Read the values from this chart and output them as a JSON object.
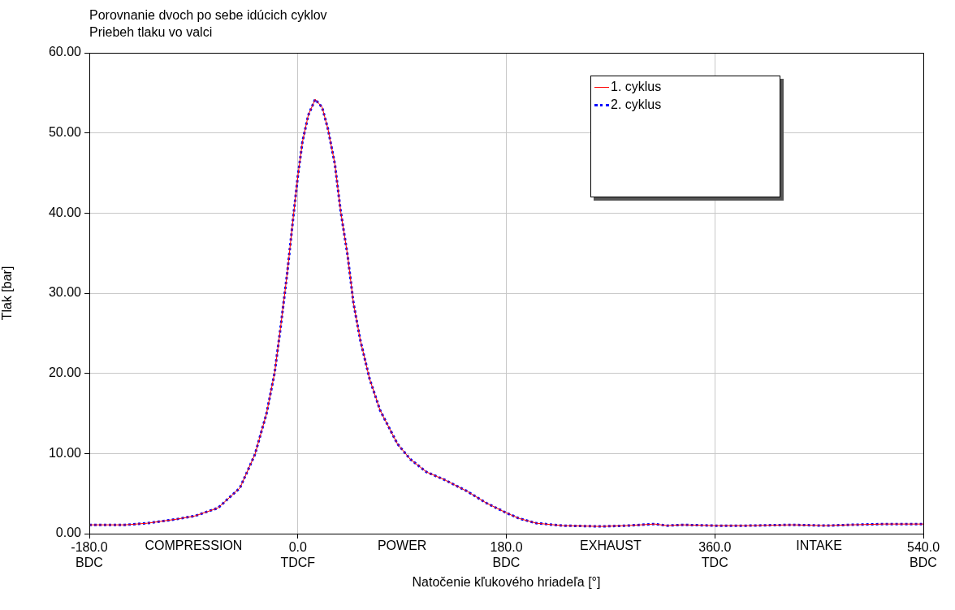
{
  "chart_data": {
    "type": "line",
    "title": "Porovnanie dvoch po sebe idúcich cyklov",
    "subtitle": "Priebeh tlaku vo valci",
    "xlabel": "Natočenie kľukového hriadeľa [°]",
    "ylabel": "Tlak [bar]",
    "x": [
      -180,
      -149,
      -130,
      -105,
      -89,
      -69,
      -50,
      -37,
      -27,
      -20,
      -15,
      -9,
      -4,
      0,
      4,
      9,
      15,
      21,
      26,
      32,
      37,
      43,
      48,
      54,
      62,
      71,
      86,
      97,
      111,
      127,
      146,
      163,
      180,
      191,
      206,
      229,
      262,
      284,
      308,
      319,
      332,
      360,
      389,
      427,
      456,
      477,
      506,
      540
    ],
    "series": [
      {
        "name": "1. cyklus",
        "color": "#ff0000",
        "line_style": "solid",
        "values": [
          1.1,
          1.1,
          1.3,
          1.8,
          2.2,
          3.2,
          5.7,
          9.9,
          15.0,
          20.1,
          25.6,
          32.7,
          39.4,
          44.6,
          48.9,
          52.2,
          54.2,
          53.2,
          50.5,
          46.1,
          40.2,
          34.7,
          28.8,
          24.1,
          19.3,
          15.4,
          11.2,
          9.3,
          7.7,
          6.7,
          5.3,
          3.8,
          2.6,
          1.9,
          1.3,
          1.0,
          0.9,
          1.0,
          1.2,
          1.0,
          1.1,
          1.0,
          1.0,
          1.1,
          1.0,
          1.1,
          1.2,
          1.2
        ]
      },
      {
        "name": "2. cyklus",
        "color": "#0000ff",
        "line_style": "dotted",
        "values": [
          1.1,
          1.1,
          1.3,
          1.8,
          2.2,
          3.2,
          5.7,
          9.9,
          15.0,
          20.1,
          25.6,
          32.7,
          39.4,
          44.6,
          48.9,
          52.2,
          54.2,
          53.2,
          50.5,
          46.1,
          40.2,
          34.7,
          28.8,
          24.1,
          19.3,
          15.4,
          11.2,
          9.3,
          7.7,
          6.7,
          5.3,
          3.8,
          2.6,
          1.9,
          1.3,
          1.0,
          0.9,
          1.0,
          1.2,
          1.0,
          1.1,
          1.0,
          1.0,
          1.1,
          1.0,
          1.1,
          1.2,
          1.2
        ]
      }
    ],
    "xlim": [
      -180,
      540
    ],
    "xticks": [
      {
        "value": -180,
        "label": "-180.0\nBDC"
      },
      {
        "value": 0,
        "label": "0.0\nTDCF"
      },
      {
        "value": 180,
        "label": "180.0\nBDC"
      },
      {
        "value": 360,
        "label": "360.0\nTDC"
      },
      {
        "value": 540,
        "label": "540.0\nBDC"
      }
    ],
    "ylim": [
      0,
      60
    ],
    "yticks": [
      {
        "value": 0,
        "label": "0.00"
      },
      {
        "value": 10,
        "label": "10.00"
      },
      {
        "value": 20,
        "label": "20.00"
      },
      {
        "value": 30,
        "label": "30.00"
      },
      {
        "value": 40,
        "label": "40.00"
      },
      {
        "value": 50,
        "label": "50.00"
      },
      {
        "value": 60,
        "label": "60.00"
      }
    ],
    "annotations": [
      "COMPRESSION",
      "POWER",
      "EXHAUST",
      "INTAKE"
    ],
    "grid": true,
    "legend": "top right",
    "marker": "none"
  }
}
